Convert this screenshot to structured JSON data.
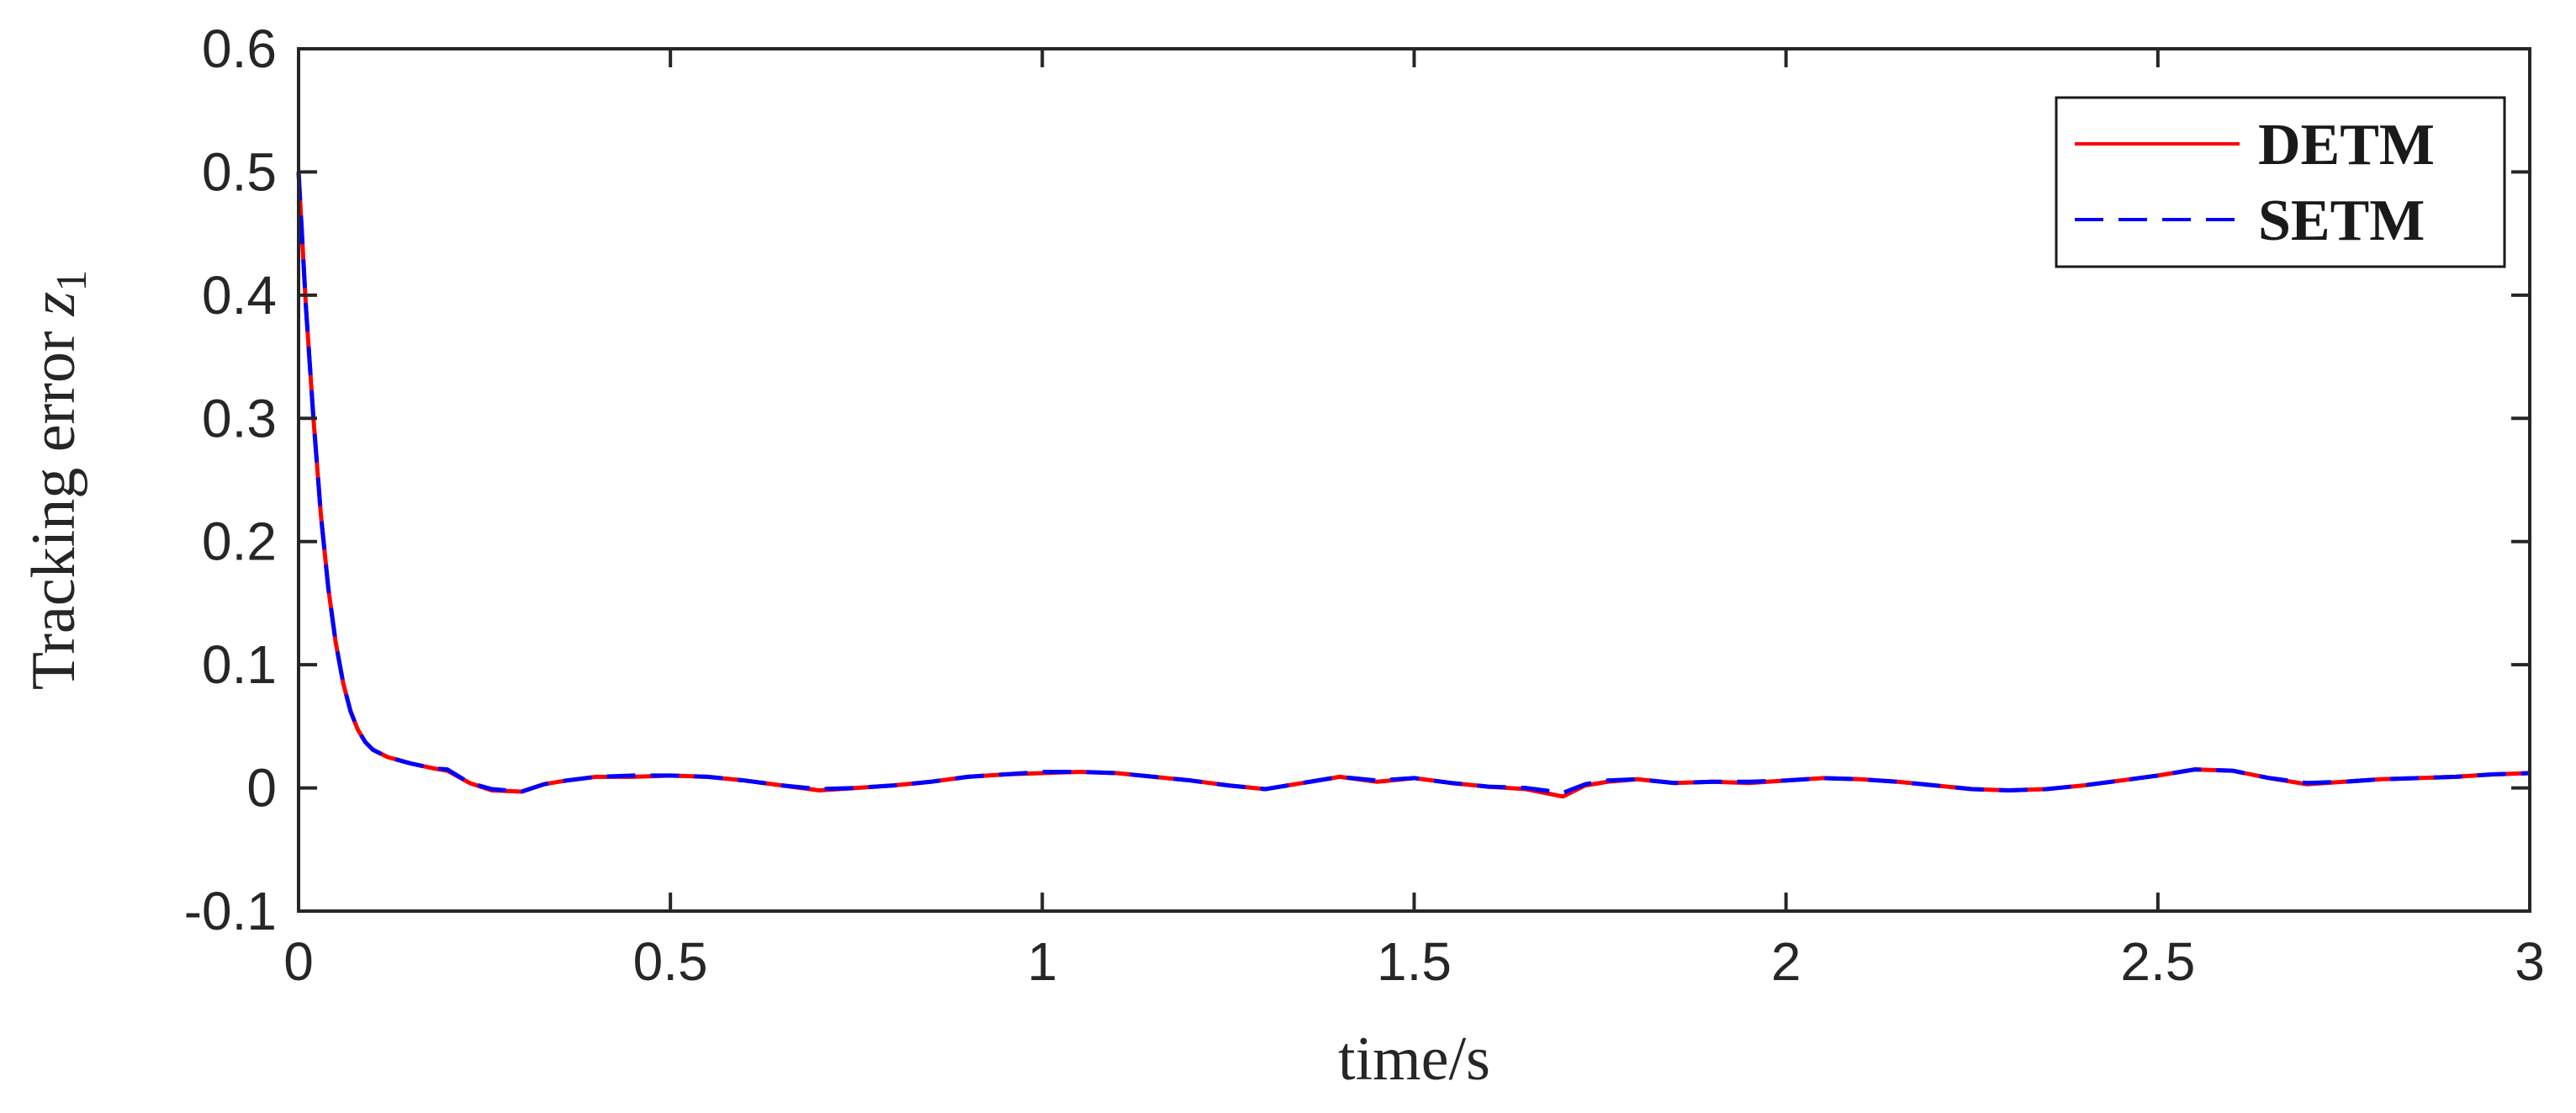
{
  "chart_data": {
    "type": "line",
    "xlabel": "time/s",
    "ylabel": "Tracking error",
    "ylabel_var": "z",
    "ylabel_sub": "1",
    "xlim": [
      0,
      3
    ],
    "ylim": [
      -0.1,
      0.6
    ],
    "x_ticks": [
      0,
      0.5,
      1,
      1.5,
      2,
      2.5,
      3
    ],
    "x_tick_labels": [
      "0",
      "0.5",
      "1",
      "1.5",
      "2",
      "2.5",
      "3"
    ],
    "y_ticks": [
      -0.1,
      0,
      0.1,
      0.2,
      0.3,
      0.4,
      0.5,
      0.6
    ],
    "y_tick_labels": [
      "-0.1",
      "0",
      "0.1",
      "0.2",
      "0.3",
      "0.4",
      "0.5",
      "0.6"
    ],
    "grid": false,
    "legend_position": "top-right",
    "series": [
      {
        "name": "DETM",
        "color": "#ff0000",
        "dash": "solid",
        "x": [
          0,
          0.01,
          0.02,
          0.03,
          0.04,
          0.05,
          0.06,
          0.07,
          0.08,
          0.09,
          0.1,
          0.12,
          0.15,
          0.18,
          0.2,
          0.23,
          0.26,
          0.3,
          0.33,
          0.36,
          0.4,
          0.45,
          0.5,
          0.55,
          0.6,
          0.65,
          0.7,
          0.75,
          0.8,
          0.85,
          0.9,
          0.95,
          1.0,
          1.05,
          1.1,
          1.15,
          1.2,
          1.25,
          1.3,
          1.35,
          1.4,
          1.45,
          1.5,
          1.55,
          1.6,
          1.65,
          1.7,
          1.73,
          1.76,
          1.8,
          1.85,
          1.9,
          1.95,
          2.0,
          2.05,
          2.1,
          2.15,
          2.2,
          2.25,
          2.3,
          2.35,
          2.4,
          2.45,
          2.5,
          2.55,
          2.6,
          2.65,
          2.7,
          2.75,
          2.8,
          2.85,
          2.9,
          2.95,
          3.0
        ],
        "values": [
          0.5,
          0.39,
          0.3,
          0.222,
          0.162,
          0.118,
          0.085,
          0.062,
          0.047,
          0.037,
          0.031,
          0.025,
          0.02,
          0.016,
          0.014,
          0.004,
          -0.002,
          -0.003,
          0.003,
          0.006,
          0.009,
          0.009,
          0.01,
          0.009,
          0.006,
          0.002,
          -0.002,
          0.0,
          0.002,
          0.005,
          0.009,
          0.011,
          0.012,
          0.013,
          0.012,
          0.009,
          0.006,
          0.002,
          -0.001,
          0.004,
          0.009,
          0.005,
          0.008,
          0.004,
          0.001,
          -0.001,
          -0.007,
          0.002,
          0.005,
          0.007,
          0.004,
          0.005,
          0.004,
          0.006,
          0.008,
          0.007,
          0.005,
          0.002,
          -0.001,
          -0.002,
          -0.001,
          0.002,
          0.006,
          0.01,
          0.015,
          0.014,
          0.008,
          0.003,
          0.005,
          0.007,
          0.008,
          0.009,
          0.011,
          0.012
        ]
      },
      {
        "name": "SETM",
        "color": "#0000ff",
        "dash": "dashed",
        "x": [
          0,
          0.01,
          0.02,
          0.03,
          0.04,
          0.05,
          0.06,
          0.07,
          0.08,
          0.09,
          0.1,
          0.12,
          0.15,
          0.18,
          0.2,
          0.23,
          0.26,
          0.3,
          0.33,
          0.36,
          0.4,
          0.45,
          0.5,
          0.55,
          0.6,
          0.65,
          0.7,
          0.75,
          0.8,
          0.85,
          0.9,
          0.95,
          1.0,
          1.05,
          1.1,
          1.15,
          1.2,
          1.25,
          1.3,
          1.35,
          1.4,
          1.45,
          1.5,
          1.55,
          1.6,
          1.65,
          1.7,
          1.73,
          1.76,
          1.8,
          1.85,
          1.9,
          1.95,
          2.0,
          2.05,
          2.1,
          2.15,
          2.2,
          2.25,
          2.3,
          2.35,
          2.4,
          2.45,
          2.5,
          2.55,
          2.6,
          2.65,
          2.7,
          2.75,
          2.8,
          2.85,
          2.9,
          2.95,
          3.0
        ],
        "values": [
          0.5,
          0.39,
          0.3,
          0.222,
          0.162,
          0.118,
          0.085,
          0.062,
          0.047,
          0.037,
          0.031,
          0.025,
          0.02,
          0.016,
          0.015,
          0.004,
          -0.001,
          -0.003,
          0.003,
          0.006,
          0.009,
          0.01,
          0.01,
          0.009,
          0.006,
          0.002,
          -0.001,
          0.0,
          0.002,
          0.005,
          0.009,
          0.011,
          0.013,
          0.013,
          0.012,
          0.009,
          0.006,
          0.002,
          -0.001,
          0.004,
          0.009,
          0.006,
          0.008,
          0.004,
          0.001,
          0.0,
          -0.004,
          0.003,
          0.006,
          0.007,
          0.004,
          0.005,
          0.005,
          0.006,
          0.008,
          0.007,
          0.005,
          0.002,
          -0.001,
          -0.002,
          -0.001,
          0.002,
          0.006,
          0.01,
          0.015,
          0.014,
          0.008,
          0.004,
          0.005,
          0.007,
          0.008,
          0.009,
          0.011,
          0.012
        ]
      }
    ]
  }
}
